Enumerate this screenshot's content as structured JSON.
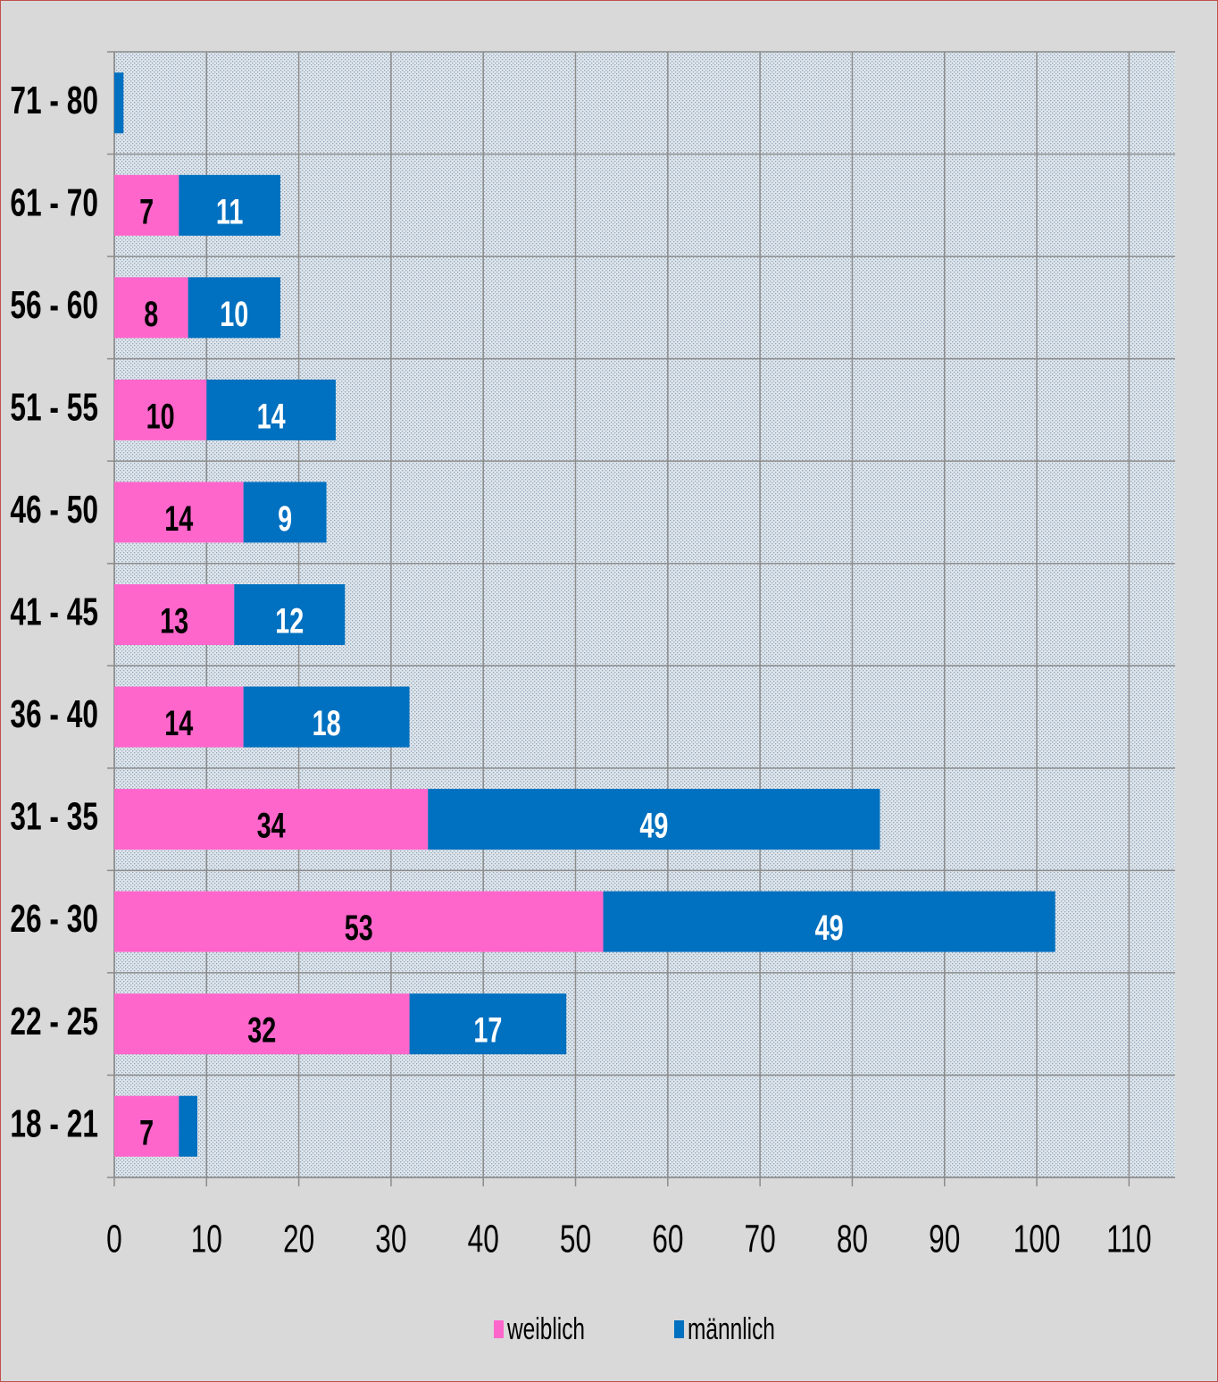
{
  "chart_data": {
    "type": "bar",
    "orientation": "horizontal",
    "stacked": true,
    "categories": [
      "71 - 80",
      "61 - 70",
      "56 - 60",
      "51 - 55",
      "46 - 50",
      "41 - 45",
      "36 - 40",
      "31 - 35",
      "26 - 30",
      "22 - 25",
      "18 - 21"
    ],
    "series": [
      {
        "name": "weiblich",
        "color": "#ff66cc",
        "values": [
          0,
          7,
          8,
          10,
          14,
          13,
          14,
          34,
          53,
          32,
          7
        ]
      },
      {
        "name": "männlich",
        "color": "#0070c0",
        "values": [
          1,
          11,
          10,
          14,
          9,
          12,
          18,
          49,
          49,
          17,
          2
        ]
      }
    ],
    "xlim": [
      0,
      115
    ],
    "xticks": [
      0,
      10,
      20,
      30,
      40,
      50,
      60,
      70,
      80,
      90,
      100,
      110
    ],
    "grid": true,
    "legend": "bottom"
  }
}
